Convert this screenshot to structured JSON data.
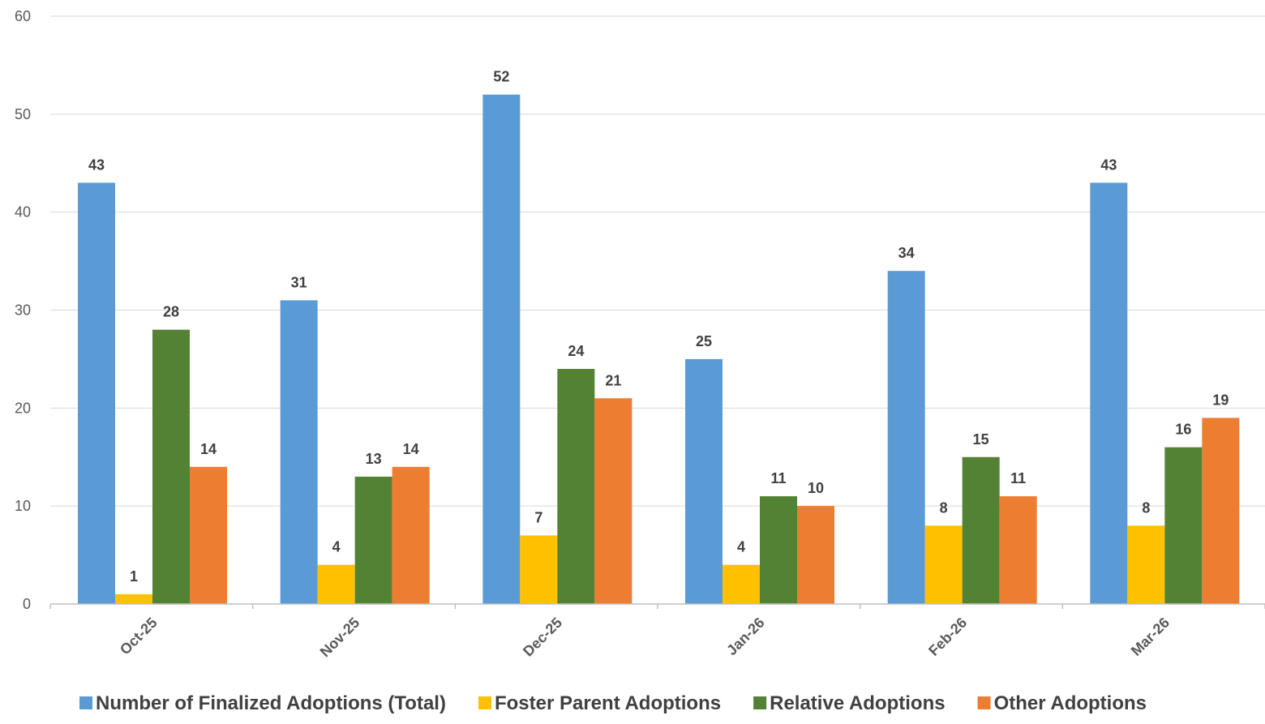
{
  "chart_data": {
    "type": "bar",
    "title": "",
    "xlabel": "",
    "ylabel": "",
    "ylim": [
      0,
      60
    ],
    "yticks": [
      0,
      10,
      20,
      30,
      40,
      50,
      60
    ],
    "grid": true,
    "legend_position": "bottom",
    "categories": [
      "Oct-25",
      "Nov-25",
      "Dec-25",
      "Jan-26",
      "Feb-26",
      "Mar-26"
    ],
    "series": [
      {
        "name": "Number of Finalized Adoptions (Total)",
        "color": "#5B9BD5",
        "values": [
          43,
          31,
          52,
          25,
          34,
          43
        ]
      },
      {
        "name": "Foster Parent Adoptions",
        "color": "#FFC000",
        "values": [
          1,
          4,
          7,
          4,
          8,
          8
        ]
      },
      {
        "name": "Relative Adoptions",
        "color": "#548235",
        "values": [
          28,
          13,
          24,
          11,
          15,
          16
        ]
      },
      {
        "name": "Other Adoptions",
        "color": "#ED7D31",
        "values": [
          14,
          14,
          21,
          10,
          11,
          19
        ]
      }
    ]
  }
}
